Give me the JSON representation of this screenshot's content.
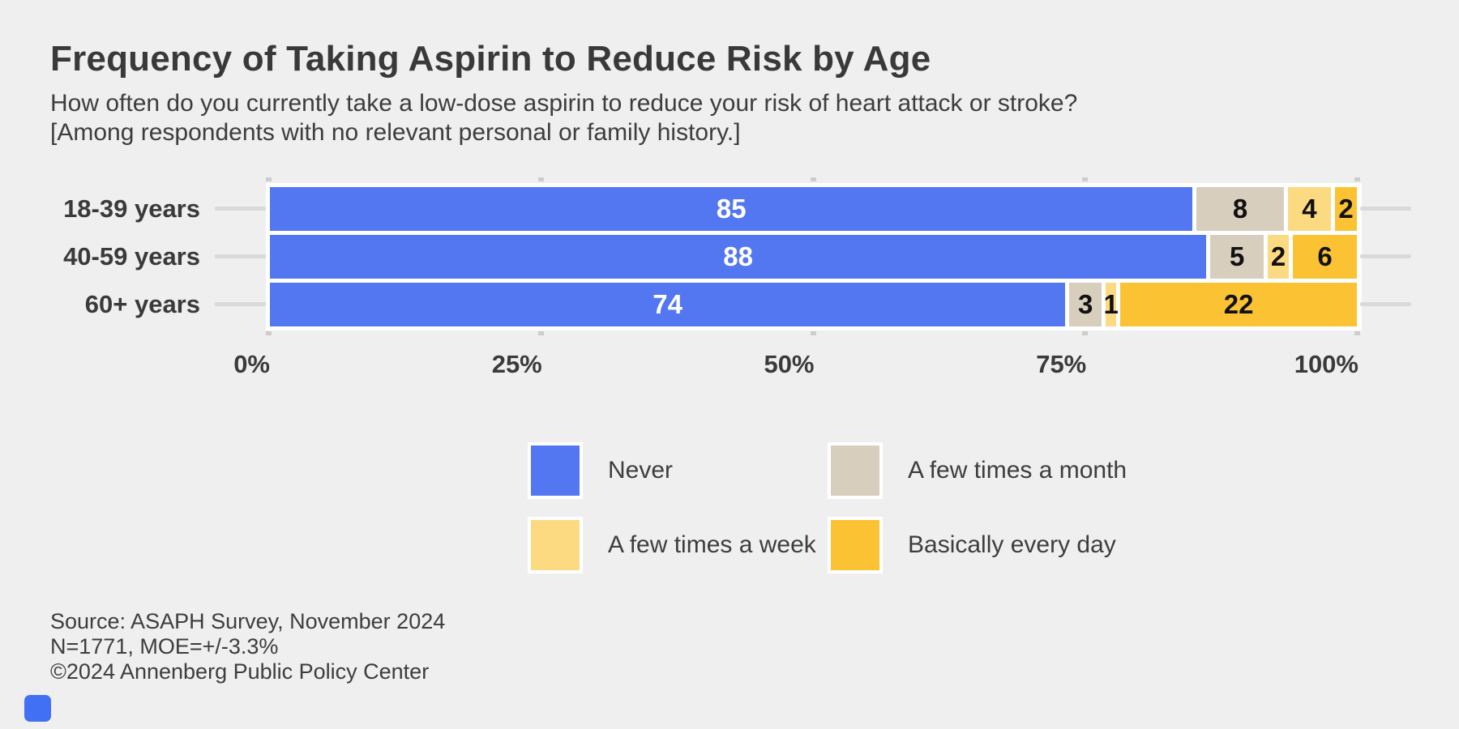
{
  "page": {
    "background": "#efefef"
  },
  "header": {
    "title": "Frequency of Taking Aspirin to Reduce Risk by Age",
    "subtitle_line1": "How often do you currently take a low-dose aspirin to reduce your risk of heart attack or stroke?",
    "subtitle_line2": "[Among respondents with no relevant personal or family history.]"
  },
  "chart_data": {
    "type": "bar",
    "stacked": true,
    "orientation": "horizontal",
    "title": "Frequency of Taking Aspirin to Reduce Risk by Age",
    "categories": [
      "18-39 years",
      "40-59 years",
      "60+ years"
    ],
    "series": [
      {
        "name": "Never",
        "color": "#5377f1",
        "values": [
          85,
          88,
          74
        ]
      },
      {
        "name": "A few times a month",
        "color": "#d7cebe",
        "values": [
          8,
          5,
          3
        ]
      },
      {
        "name": "A few times a week",
        "color": "#fcda82",
        "values": [
          4,
          2,
          1
        ]
      },
      {
        "name": "Basically every day",
        "color": "#fbc234",
        "values": [
          2,
          6,
          22
        ]
      }
    ],
    "xlabel": "",
    "ylabel": "",
    "xlim": [
      0,
      100
    ],
    "axis_tick_labels": [
      "0%",
      "25%",
      "50%",
      "75%",
      "100%"
    ],
    "axis_tick_values": [
      0,
      25,
      50,
      75,
      100
    ],
    "grid": false,
    "legend_position": "bottom",
    "value_label_color_first_series": "#ffffff",
    "value_label_color_other": "#111111"
  },
  "footer": {
    "line1": "Source: ASAPH Survey, November 2024",
    "line2": "N=1771, MOE=+/-3.3%",
    "line3": "©2024 Annenberg Public Policy Center"
  }
}
